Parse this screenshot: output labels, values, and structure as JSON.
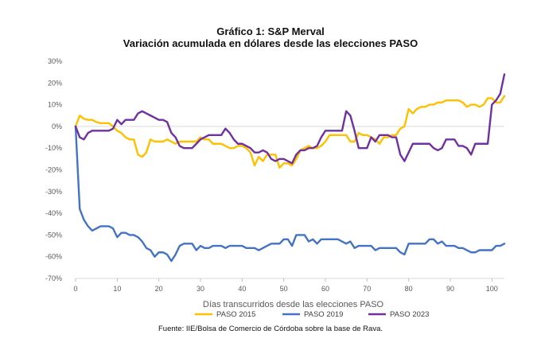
{
  "chart_data": {
    "type": "line",
    "title": "Gráfico 1: S&P Merval",
    "subtitle": "Variación acumulada en dólares desde las elecciones PASO",
    "xlabel": "Días transcurridos desde las elecciones PASO",
    "ylabel": "",
    "xlim": [
      0,
      103
    ],
    "ylim": [
      -70,
      30
    ],
    "x_ticks": [
      0,
      10,
      20,
      30,
      40,
      50,
      60,
      70,
      80,
      90,
      100
    ],
    "y_ticks": [
      30,
      20,
      10,
      0,
      -10,
      -20,
      -30,
      -40,
      -50,
      -60,
      -70
    ],
    "y_tick_labels": [
      "30%",
      "20%",
      "10%",
      "0%",
      "-10%",
      "-20%",
      "-30%",
      "-40%",
      "-50%",
      "-60%",
      "-70%"
    ],
    "grid": false,
    "legend_position": "bottom",
    "series": [
      {
        "name": "PASO 2015",
        "color": "#FFC000",
        "points": [
          [
            0,
            0
          ],
          [
            1,
            5
          ],
          [
            2,
            3.5
          ],
          [
            3,
            3
          ],
          [
            4,
            3
          ],
          [
            5,
            2
          ],
          [
            6,
            1.5
          ],
          [
            7,
            1.5
          ],
          [
            8,
            1.5
          ],
          [
            9,
            0
          ],
          [
            10,
            -2
          ],
          [
            11,
            -3
          ],
          [
            12,
            -5
          ],
          [
            13,
            -6
          ],
          [
            14,
            -6
          ],
          [
            15,
            -13
          ],
          [
            16,
            -14
          ],
          [
            17,
            -12
          ],
          [
            18,
            -6
          ],
          [
            19,
            -7
          ],
          [
            20,
            -7
          ],
          [
            21,
            -7
          ],
          [
            22,
            -6
          ],
          [
            23,
            -7
          ],
          [
            24,
            -8
          ],
          [
            25,
            -7
          ],
          [
            26,
            -7
          ],
          [
            27,
            -7
          ],
          [
            28,
            -7
          ],
          [
            29,
            -7
          ],
          [
            30,
            -5
          ],
          [
            31,
            -6
          ],
          [
            32,
            -6
          ],
          [
            33,
            -8
          ],
          [
            34,
            -8
          ],
          [
            35,
            -8
          ],
          [
            36,
            -9
          ],
          [
            37,
            -10
          ],
          [
            38,
            -10
          ],
          [
            39,
            -9
          ],
          [
            40,
            -9
          ],
          [
            41,
            -10
          ],
          [
            42,
            -12
          ],
          [
            43,
            -18
          ],
          [
            44,
            -14
          ],
          [
            45,
            -16
          ],
          [
            46,
            -13
          ],
          [
            47,
            -13
          ],
          [
            48,
            -13
          ],
          [
            49,
            -19
          ],
          [
            50,
            -17
          ],
          [
            51,
            -17
          ],
          [
            52,
            -18
          ],
          [
            53,
            -15
          ],
          [
            54,
            -11
          ],
          [
            55,
            -10
          ],
          [
            56,
            -9
          ],
          [
            57,
            -10
          ],
          [
            58,
            -10
          ],
          [
            59,
            -9
          ],
          [
            60,
            -7
          ],
          [
            61,
            -4
          ],
          [
            62,
            -4
          ],
          [
            63,
            -4
          ],
          [
            64,
            -4
          ],
          [
            65,
            -4
          ],
          [
            66,
            -7
          ],
          [
            67,
            -7
          ],
          [
            68,
            -3
          ],
          [
            69,
            -4
          ],
          [
            70,
            -4
          ],
          [
            71,
            -5
          ],
          [
            72,
            -6
          ],
          [
            73,
            -8
          ],
          [
            74,
            -5
          ],
          [
            75,
            -5
          ],
          [
            76,
            -4
          ],
          [
            77,
            -4
          ],
          [
            78,
            -1
          ],
          [
            79,
            0
          ],
          [
            80,
            8
          ],
          [
            81,
            6
          ],
          [
            82,
            8
          ],
          [
            83,
            9
          ],
          [
            84,
            9
          ],
          [
            85,
            10
          ],
          [
            86,
            10
          ],
          [
            87,
            11
          ],
          [
            88,
            11
          ],
          [
            89,
            12
          ],
          [
            90,
            12
          ],
          [
            91,
            12
          ],
          [
            92,
            12
          ],
          [
            93,
            11
          ],
          [
            94,
            9
          ],
          [
            95,
            10
          ],
          [
            96,
            10
          ],
          [
            97,
            9
          ],
          [
            98,
            10
          ],
          [
            99,
            13
          ],
          [
            100,
            13
          ],
          [
            101,
            11
          ],
          [
            102,
            11
          ],
          [
            103,
            14
          ]
        ]
      },
      {
        "name": "PASO 2019",
        "color": "#4472C4",
        "points": [
          [
            0,
            0
          ],
          [
            1,
            -38
          ],
          [
            2,
            -43
          ],
          [
            3,
            -46
          ],
          [
            4,
            -48
          ],
          [
            5,
            -47
          ],
          [
            6,
            -46
          ],
          [
            7,
            -46
          ],
          [
            8,
            -46
          ],
          [
            9,
            -47
          ],
          [
            10,
            -51
          ],
          [
            11,
            -49
          ],
          [
            12,
            -49
          ],
          [
            13,
            -50
          ],
          [
            14,
            -50
          ],
          [
            15,
            -51
          ],
          [
            16,
            -53
          ],
          [
            17,
            -56
          ],
          [
            18,
            -57
          ],
          [
            19,
            -60
          ],
          [
            20,
            -58
          ],
          [
            21,
            -58
          ],
          [
            22,
            -59
          ],
          [
            23,
            -62
          ],
          [
            24,
            -59
          ],
          [
            25,
            -55
          ],
          [
            26,
            -54
          ],
          [
            27,
            -54
          ],
          [
            28,
            -54
          ],
          [
            29,
            -57
          ],
          [
            30,
            -55
          ],
          [
            31,
            -56
          ],
          [
            32,
            -56
          ],
          [
            33,
            -55
          ],
          [
            34,
            -55
          ],
          [
            35,
            -55
          ],
          [
            36,
            -56
          ],
          [
            37,
            -55
          ],
          [
            38,
            -55
          ],
          [
            39,
            -55
          ],
          [
            40,
            -55
          ],
          [
            41,
            -56
          ],
          [
            42,
            -56
          ],
          [
            43,
            -56
          ],
          [
            44,
            -57
          ],
          [
            45,
            -56
          ],
          [
            46,
            -55
          ],
          [
            47,
            -54
          ],
          [
            48,
            -54
          ],
          [
            49,
            -54
          ],
          [
            50,
            -52
          ],
          [
            51,
            -52
          ],
          [
            52,
            -55
          ],
          [
            53,
            -50
          ],
          [
            54,
            -50
          ],
          [
            55,
            -50
          ],
          [
            56,
            -53
          ],
          [
            57,
            -52
          ],
          [
            58,
            -54
          ],
          [
            59,
            -52
          ],
          [
            60,
            -52
          ],
          [
            61,
            -52
          ],
          [
            62,
            -52
          ],
          [
            63,
            -52
          ],
          [
            64,
            -53
          ],
          [
            65,
            -54
          ],
          [
            66,
            -53
          ],
          [
            67,
            -56
          ],
          [
            68,
            -55
          ],
          [
            69,
            -55
          ],
          [
            70,
            -55
          ],
          [
            71,
            -55
          ],
          [
            72,
            -57
          ],
          [
            73,
            -56
          ],
          [
            74,
            -56
          ],
          [
            75,
            -56
          ],
          [
            76,
            -56
          ],
          [
            77,
            -56
          ],
          [
            78,
            -58
          ],
          [
            79,
            -59
          ],
          [
            80,
            -54
          ],
          [
            81,
            -54
          ],
          [
            82,
            -54
          ],
          [
            83,
            -54
          ],
          [
            84,
            -54
          ],
          [
            85,
            -52
          ],
          [
            86,
            -52
          ],
          [
            87,
            -54
          ],
          [
            88,
            -53
          ],
          [
            89,
            -55
          ],
          [
            90,
            -55
          ],
          [
            91,
            -55
          ],
          [
            92,
            -56
          ],
          [
            93,
            -56
          ],
          [
            94,
            -57
          ],
          [
            95,
            -58
          ],
          [
            96,
            -58
          ],
          [
            97,
            -57
          ],
          [
            98,
            -57
          ],
          [
            99,
            -57
          ],
          [
            100,
            -57
          ],
          [
            101,
            -55
          ],
          [
            102,
            -55
          ],
          [
            103,
            -54
          ]
        ]
      },
      {
        "name": "PASO 2023",
        "color": "#7030A0",
        "points": [
          [
            0,
            0
          ],
          [
            1,
            -5
          ],
          [
            2,
            -6
          ],
          [
            3,
            -3
          ],
          [
            4,
            -2
          ],
          [
            5,
            -2
          ],
          [
            6,
            -2
          ],
          [
            7,
            -2
          ],
          [
            8,
            -2
          ],
          [
            9,
            -1
          ],
          [
            10,
            3
          ],
          [
            11,
            1
          ],
          [
            12,
            3
          ],
          [
            13,
            3
          ],
          [
            14,
            3
          ],
          [
            15,
            6
          ],
          [
            16,
            7
          ],
          [
            17,
            6
          ],
          [
            18,
            5
          ],
          [
            19,
            4
          ],
          [
            20,
            3
          ],
          [
            21,
            3
          ],
          [
            22,
            2
          ],
          [
            23,
            -3
          ],
          [
            24,
            -5
          ],
          [
            25,
            -9
          ],
          [
            26,
            -10
          ],
          [
            27,
            -10
          ],
          [
            28,
            -10
          ],
          [
            29,
            -8
          ],
          [
            30,
            -6
          ],
          [
            31,
            -5
          ],
          [
            32,
            -4
          ],
          [
            33,
            -4
          ],
          [
            34,
            -4
          ],
          [
            35,
            -4
          ],
          [
            36,
            -1
          ],
          [
            37,
            -3
          ],
          [
            38,
            -6
          ],
          [
            39,
            -8
          ],
          [
            40,
            -8
          ],
          [
            41,
            -9
          ],
          [
            42,
            -10
          ],
          [
            43,
            -12
          ],
          [
            44,
            -12
          ],
          [
            45,
            -11
          ],
          [
            46,
            -12
          ],
          [
            47,
            -15
          ],
          [
            48,
            -16
          ],
          [
            49,
            -15
          ],
          [
            50,
            -15
          ],
          [
            51,
            -16
          ],
          [
            52,
            -17
          ],
          [
            53,
            -13
          ],
          [
            54,
            -11
          ],
          [
            55,
            -11
          ],
          [
            56,
            -10
          ],
          [
            57,
            -10
          ],
          [
            58,
            -9
          ],
          [
            59,
            -5
          ],
          [
            60,
            -2
          ],
          [
            61,
            -2
          ],
          [
            62,
            -2
          ],
          [
            63,
            -2
          ],
          [
            64,
            -2
          ],
          [
            65,
            7
          ],
          [
            66,
            5
          ],
          [
            67,
            -2
          ],
          [
            68,
            -10
          ],
          [
            69,
            -10
          ],
          [
            70,
            -10
          ],
          [
            71,
            -5
          ],
          [
            72,
            -7
          ],
          [
            73,
            -4
          ],
          [
            74,
            -4
          ],
          [
            75,
            -4
          ],
          [
            76,
            -5
          ],
          [
            77,
            -5
          ],
          [
            78,
            -13
          ],
          [
            79,
            -16
          ],
          [
            80,
            -12
          ],
          [
            81,
            -8
          ],
          [
            82,
            -8
          ],
          [
            83,
            -8
          ],
          [
            84,
            -8
          ],
          [
            85,
            -8
          ],
          [
            86,
            -10
          ],
          [
            87,
            -11
          ],
          [
            88,
            -10
          ],
          [
            89,
            -6
          ],
          [
            90,
            -6
          ],
          [
            91,
            -6
          ],
          [
            92,
            -9
          ],
          [
            93,
            -9
          ],
          [
            94,
            -10
          ],
          [
            95,
            -13
          ],
          [
            96,
            -8
          ],
          [
            97,
            -8
          ],
          [
            98,
            -8
          ],
          [
            99,
            -8
          ],
          [
            100,
            10
          ],
          [
            101,
            12
          ],
          [
            102,
            15
          ],
          [
            103,
            24
          ]
        ]
      }
    ],
    "source": "Fuente: IIE/Bolsa de Comercio de Córdoba sobre la base de Rava."
  }
}
